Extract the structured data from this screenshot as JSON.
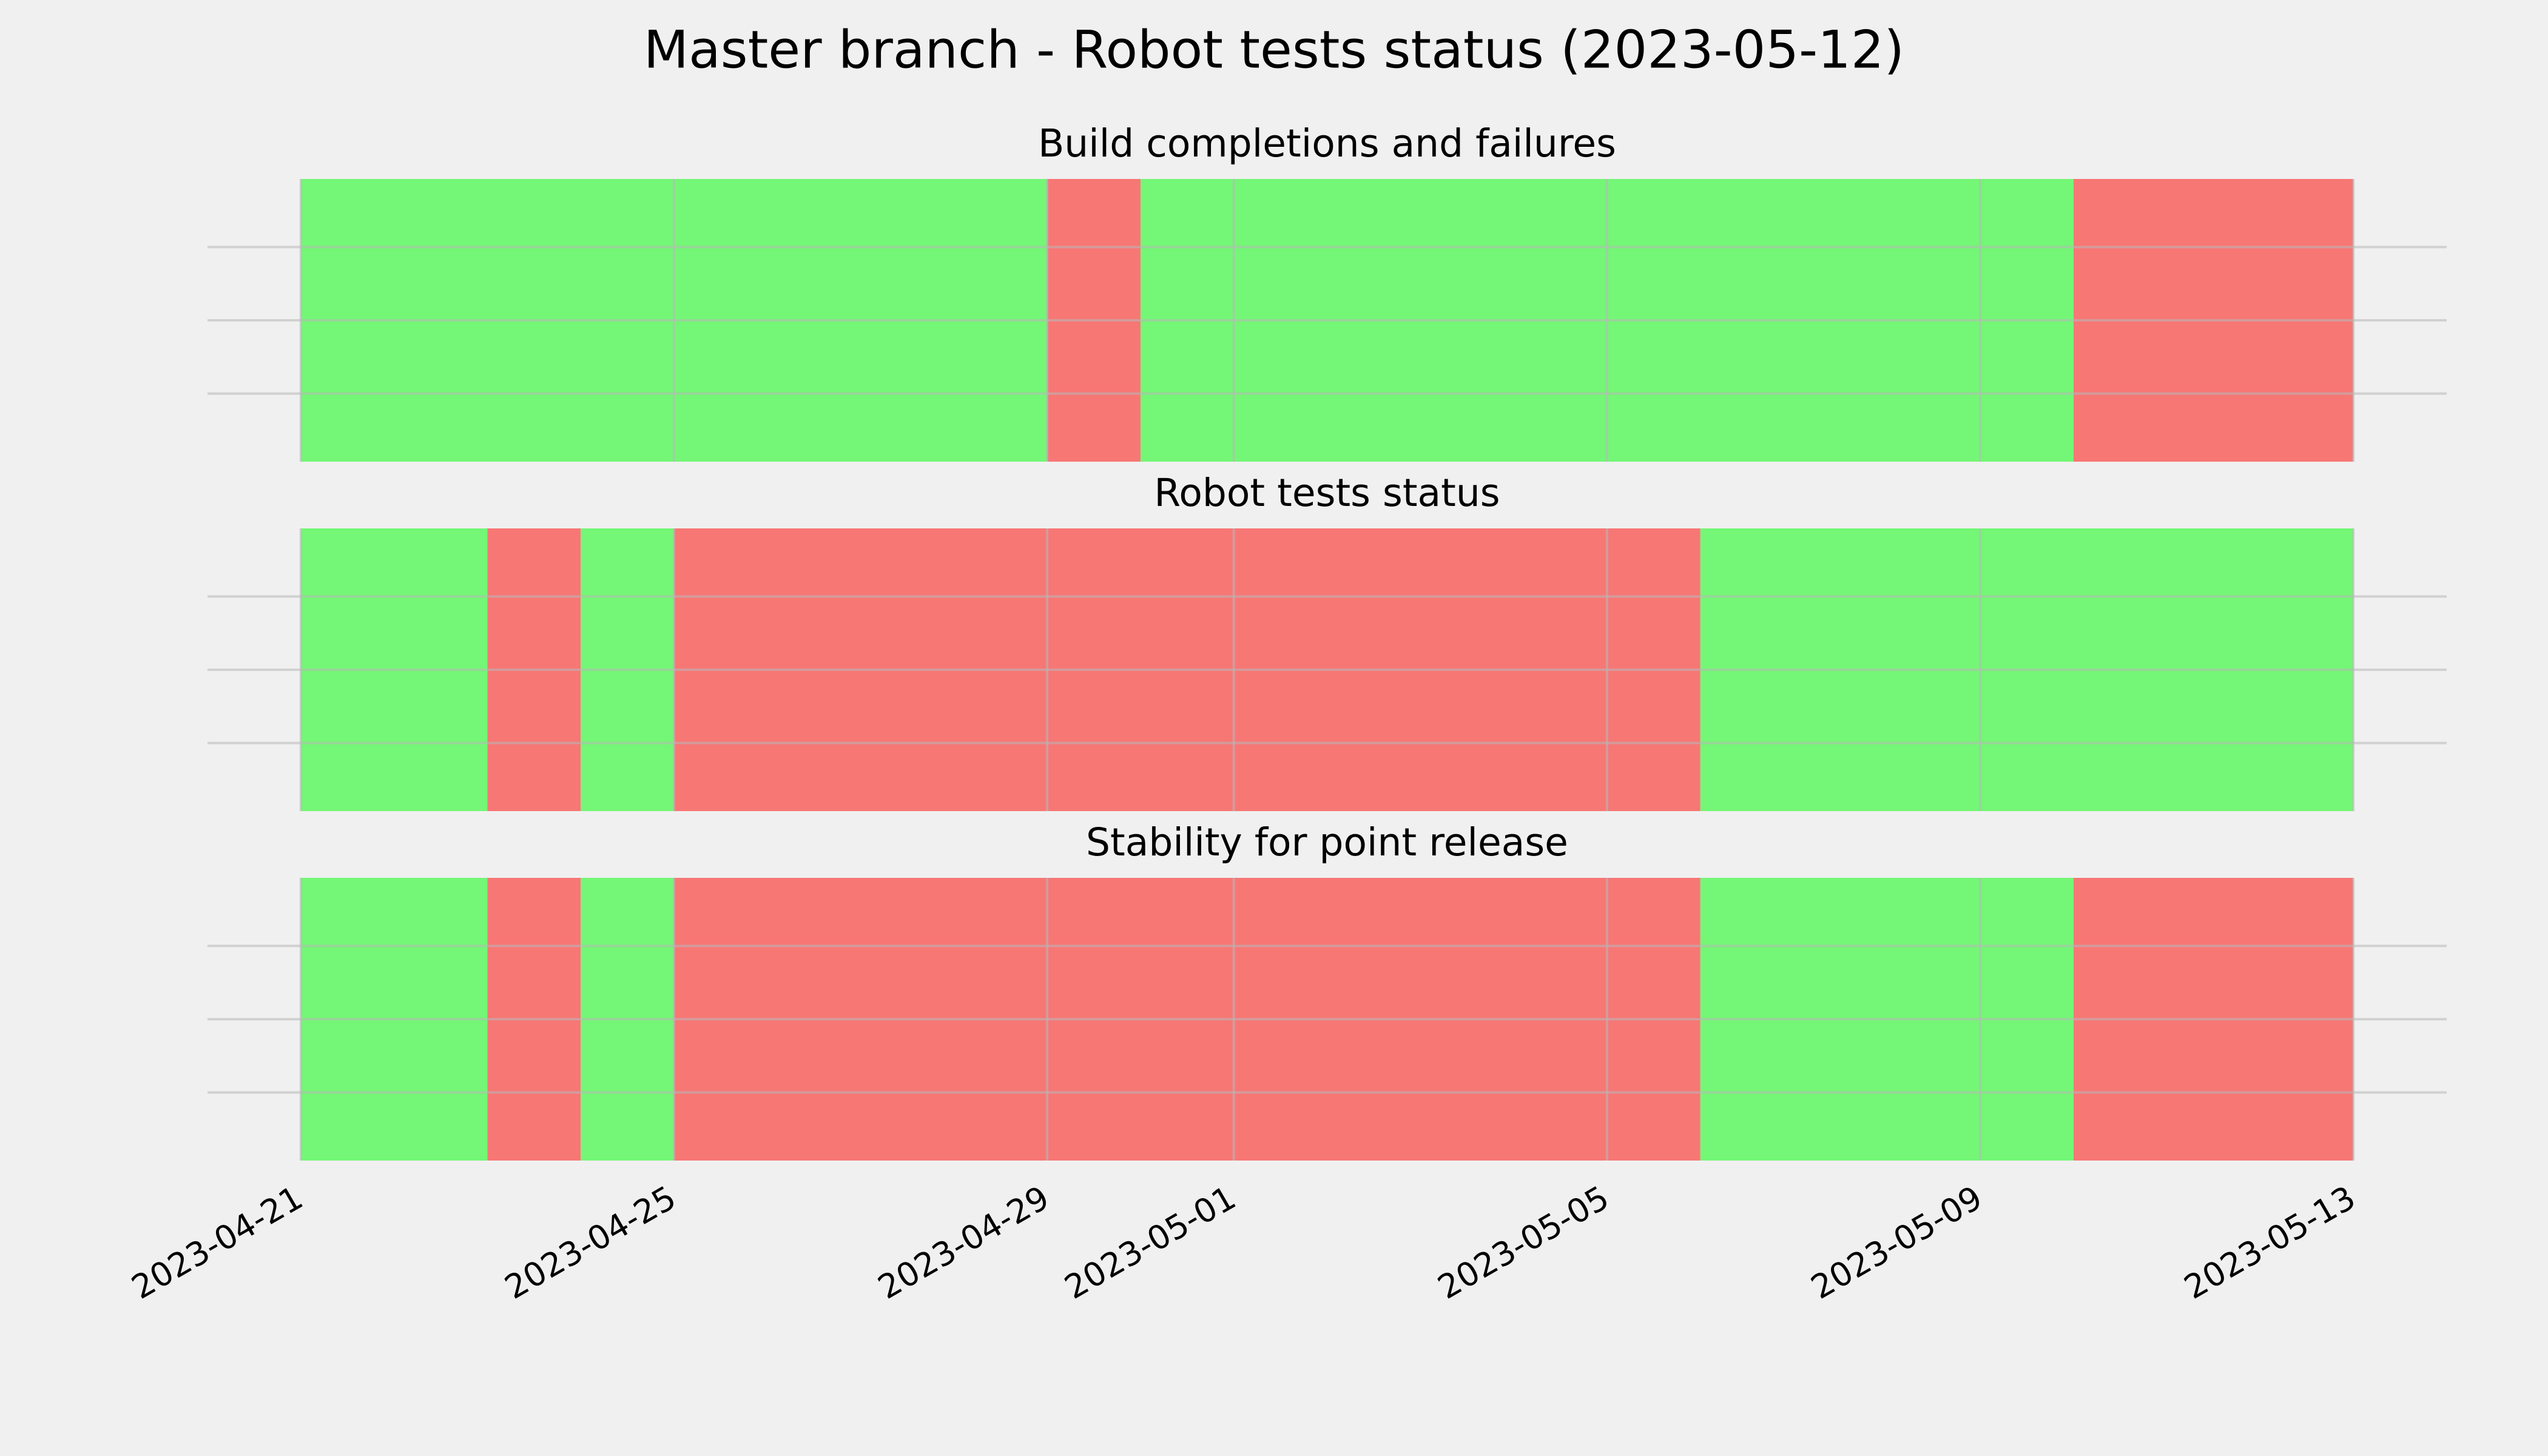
{
  "title": "Master branch - Robot tests status (2023-05-12)",
  "chart_data": [
    {
      "type": "timeline",
      "title": "Build completions and failures",
      "series": [
        {
          "color": "#74f676",
          "x": [
            "2023-04-21",
            "2023-04-30"
          ],
          "x_end": [
            "2023-04-29",
            "2023-05-10"
          ]
        },
        {
          "color": "#f77775",
          "x": [
            "2023-04-29",
            "2023-05-10"
          ],
          "x_end": [
            "2023-04-30",
            "2023-05-13"
          ]
        }
      ],
      "xlim": [
        "2023-04-20",
        "2023-05-14"
      ],
      "xticks": [
        "2023-04-21",
        "2023-04-25",
        "2023-04-29",
        "2023-05-01",
        "2023-05-05",
        "2023-05-09",
        "2023-05-13"
      ],
      "grid": true
    },
    {
      "type": "timeline",
      "title": "Robot tests status",
      "series": [
        {
          "color": "#74f676",
          "x": [
            "2023-04-21",
            "2023-04-24",
            "2023-05-06"
          ],
          "x_end": [
            "2023-04-23",
            "2023-04-25",
            "2023-05-13"
          ]
        },
        {
          "color": "#f77775",
          "x": [
            "2023-04-23",
            "2023-04-25"
          ],
          "x_end": [
            "2023-04-24",
            "2023-05-06"
          ]
        }
      ],
      "xlim": [
        "2023-04-20",
        "2023-05-14"
      ],
      "xticks": [
        "2023-04-21",
        "2023-04-25",
        "2023-04-29",
        "2023-05-01",
        "2023-05-05",
        "2023-05-09",
        "2023-05-13"
      ],
      "grid": true
    },
    {
      "type": "timeline",
      "title": "Stability for point release",
      "series": [
        {
          "color": "#74f676",
          "x": [
            "2023-04-21",
            "2023-04-24",
            "2023-05-06"
          ],
          "x_end": [
            "2023-04-23",
            "2023-04-25",
            "2023-05-10"
          ]
        },
        {
          "color": "#f77775",
          "x": [
            "2023-04-23",
            "2023-04-25",
            "2023-05-10"
          ],
          "x_end": [
            "2023-04-24",
            "2023-05-06",
            "2023-05-13"
          ]
        }
      ],
      "xlim": [
        "2023-04-20",
        "2023-05-14"
      ],
      "xticks": [
        "2023-04-21",
        "2023-04-25",
        "2023-04-29",
        "2023-05-01",
        "2023-05-05",
        "2023-05-09",
        "2023-05-13"
      ],
      "grid": true
    }
  ]
}
